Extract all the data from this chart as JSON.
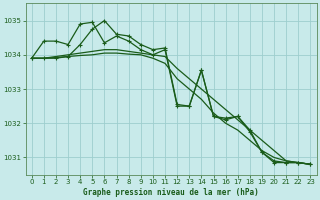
{
  "title": "Graphe pression niveau de la mer (hPa)",
  "background_color": "#c8eaea",
  "grid_color": "#9ecece",
  "line_color": "#1a5c1a",
  "xlim": [
    -0.5,
    23.5
  ],
  "ylim": [
    1030.5,
    1035.5
  ],
  "yticks": [
    1031,
    1032,
    1033,
    1034,
    1035
  ],
  "xticks": [
    0,
    1,
    2,
    3,
    4,
    5,
    6,
    7,
    8,
    9,
    10,
    11,
    12,
    13,
    14,
    15,
    16,
    17,
    18,
    19,
    20,
    21,
    22,
    23
  ],
  "series": [
    [
      1033.9,
      1033.9,
      1033.9,
      1033.95,
      1034.3,
      1034.75,
      1035.0,
      1034.6,
      1034.55,
      1034.3,
      1034.15,
      1034.2,
      1032.55,
      1032.5,
      1033.55,
      1032.2,
      1032.1,
      1032.2,
      1031.8,
      1031.15,
      1030.9,
      1030.85,
      1030.85,
      1030.8
    ],
    [
      1033.9,
      1033.9,
      1033.95,
      1034.0,
      1034.05,
      1034.1,
      1034.15,
      1034.15,
      1034.1,
      1034.05,
      1034.0,
      1033.95,
      1033.6,
      1033.3,
      1033.0,
      1032.7,
      1032.4,
      1032.1,
      1031.8,
      1031.5,
      1031.2,
      1030.9,
      1030.85,
      1030.8
    ],
    [
      1033.9,
      1033.9,
      1033.92,
      1033.95,
      1033.98,
      1034.0,
      1034.05,
      1034.05,
      1034.02,
      1034.0,
      1033.9,
      1033.75,
      1033.3,
      1033.0,
      1032.7,
      1032.3,
      1032.0,
      1031.8,
      1031.5,
      1031.2,
      1031.0,
      1030.9,
      1030.85,
      1030.8
    ],
    [
      1033.9,
      1034.4,
      1034.4,
      1034.3,
      1034.9,
      1034.95,
      1034.35,
      1034.55,
      1034.4,
      1034.15,
      1034.0,
      1034.15,
      1032.5,
      1032.5,
      1033.55,
      1032.2,
      1032.15,
      1032.2,
      1031.75,
      1031.15,
      1030.85,
      1030.85,
      1030.85,
      1030.8
    ]
  ],
  "marker_series": [
    0,
    3
  ],
  "marker_style": "+",
  "marker_size": 3,
  "linewidth": 0.9,
  "xlabel_fontsize": 5.5,
  "ylabel_fontsize": 5.5,
  "tick_fontsize": 5.0,
  "spine_color": "#5a8a5a"
}
